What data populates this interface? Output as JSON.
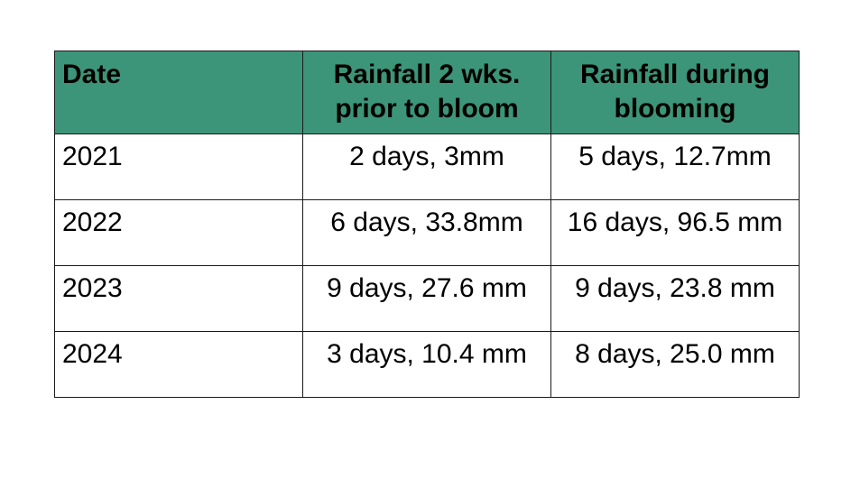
{
  "table": {
    "headers": [
      "Date",
      "Rainfall 2 wks. prior to bloom",
      "Rainfall during blooming"
    ],
    "header_color": "#3c9578",
    "rows": [
      [
        "2021",
        "2 days, 3mm",
        "5 days, 12.7mm"
      ],
      [
        "2022",
        "6 days, 33.8mm",
        "16 days, 96.5 mm"
      ],
      [
        "2023",
        "9 days, 27.6 mm",
        "9 days, 23.8 mm"
      ],
      [
        "2024",
        "3 days, 10.4 mm",
        "8 days, 25.0 mm"
      ]
    ]
  }
}
